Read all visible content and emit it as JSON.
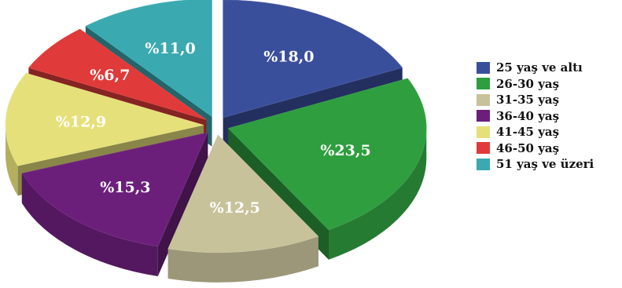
{
  "chart_data": {
    "type": "pie",
    "title": "",
    "categories": [
      "25 yaş ve altı",
      "26-30 yaş",
      "31-35 yaş",
      "36-40 yaş",
      "41-45 yaş",
      "46-50 yaş",
      "51 yaş ve üzeri"
    ],
    "values": [
      18.0,
      23.5,
      12.5,
      15.3,
      12.9,
      6.7,
      11.0
    ],
    "value_labels": [
      "%18,0",
      "%23,5",
      "%12,5",
      "%15,3",
      "%12,9",
      "%6,7",
      "%11,0"
    ],
    "colors": [
      "#3a4f9c",
      "#2f9e3f",
      "#c8c29a",
      "#6b1f7a",
      "#e6e07a",
      "#e03a3a",
      "#3aa9b0"
    ],
    "exploded": true,
    "three_d": true,
    "legend_position": "right"
  }
}
